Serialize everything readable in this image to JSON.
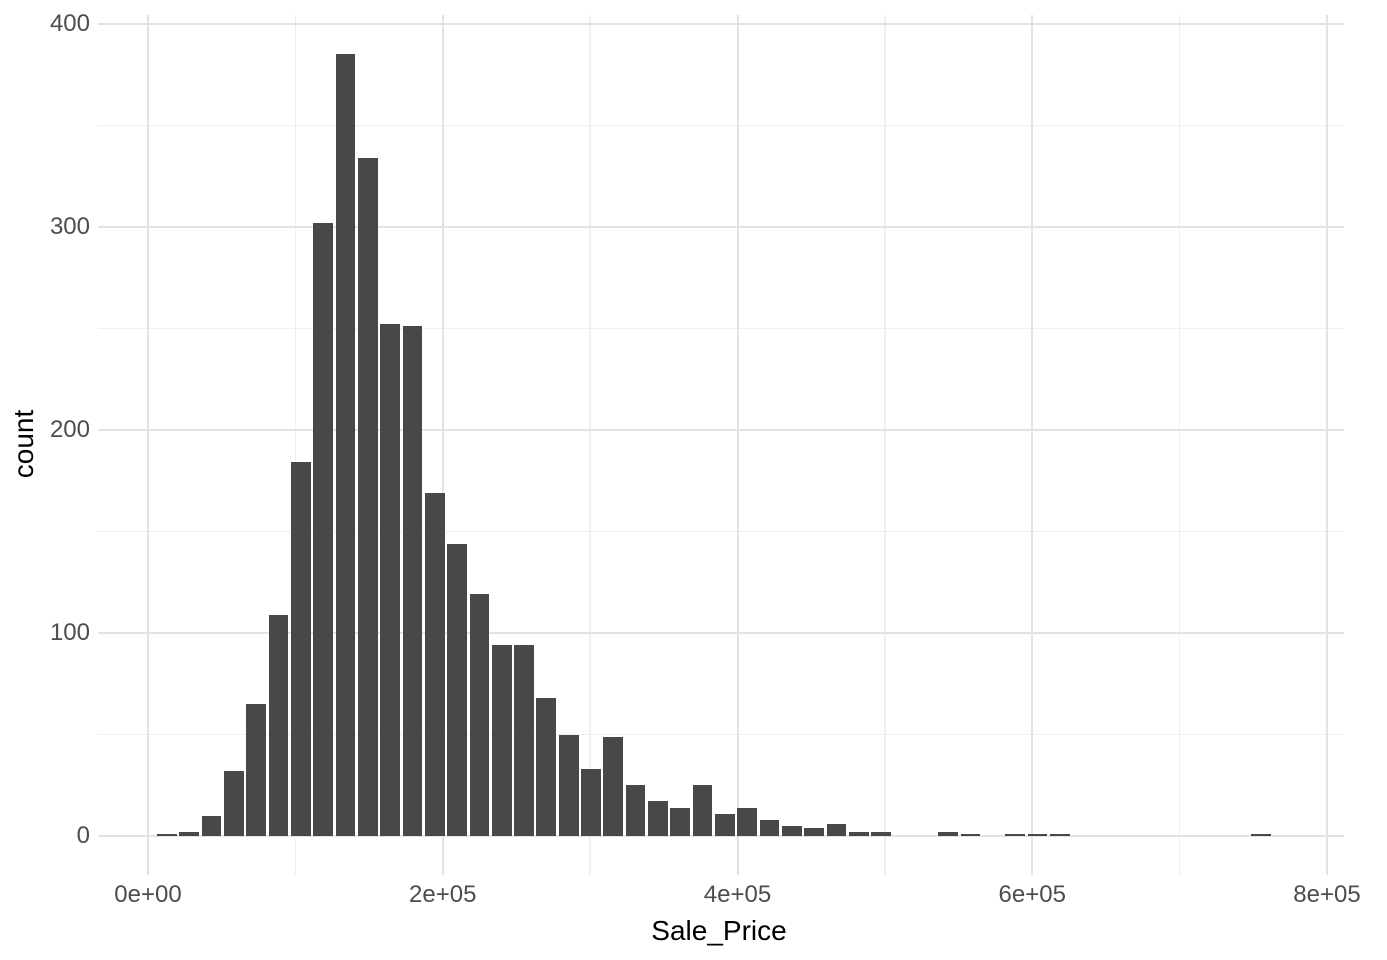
{
  "chart_data": {
    "type": "bar",
    "subtype": "histogram",
    "title": "",
    "xlabel": "Sale_Price",
    "ylabel": "count",
    "legend": "none",
    "grid": "major and minor, light gray on white",
    "x_axis": {
      "tick_labels": [
        "0e+00",
        "2e+05",
        "4e+05",
        "6e+05",
        "8e+05"
      ],
      "tick_values": [
        0,
        200000,
        400000,
        600000,
        800000
      ],
      "minor_tick_values": [
        100000,
        300000,
        500000,
        700000
      ],
      "range": [
        -34000,
        812000
      ]
    },
    "y_axis": {
      "tick_labels": [
        "0",
        "100",
        "200",
        "300",
        "400"
      ],
      "tick_values": [
        0,
        100,
        200,
        300,
        400
      ],
      "minor_tick_values": [
        50,
        150,
        250,
        350
      ],
      "range": [
        -19,
        404
      ]
    },
    "bins": {
      "binwidth": 15147,
      "centers": [
        12789,
        27936,
        43083,
        58230,
        73377,
        88524,
        103671,
        118818,
        133965,
        149112,
        164259,
        179406,
        194553,
        209700,
        224847,
        239994,
        255141,
        270288,
        285435,
        300582,
        315729,
        330876,
        346023,
        361170,
        376317,
        391464,
        406611,
        421758,
        436905,
        452052,
        467199,
        482346,
        497493,
        512640,
        527787,
        542934,
        558081,
        573228,
        588375,
        603522,
        618669,
        633816,
        648963,
        664110,
        679257,
        694404,
        709551,
        724698,
        739845,
        754992
      ],
      "counts": [
        1,
        2,
        10,
        32,
        65,
        109,
        184,
        302,
        385,
        334,
        252,
        251,
        169,
        144,
        119,
        94,
        94,
        68,
        50,
        33,
        49,
        25,
        17,
        14,
        25,
        11,
        14,
        8,
        5,
        4,
        6,
        2,
        2,
        0,
        0,
        2,
        1,
        0,
        1,
        1,
        1,
        0,
        0,
        0,
        0,
        0,
        0,
        0,
        0,
        1
      ]
    },
    "colors": {
      "bar_fill": "#484848",
      "grid_major": "#e3e3e3",
      "grid_minor": "#efefef",
      "tick_text": "#4d4d4d",
      "axis_title_text": "#000000",
      "background": "#ffffff"
    }
  }
}
